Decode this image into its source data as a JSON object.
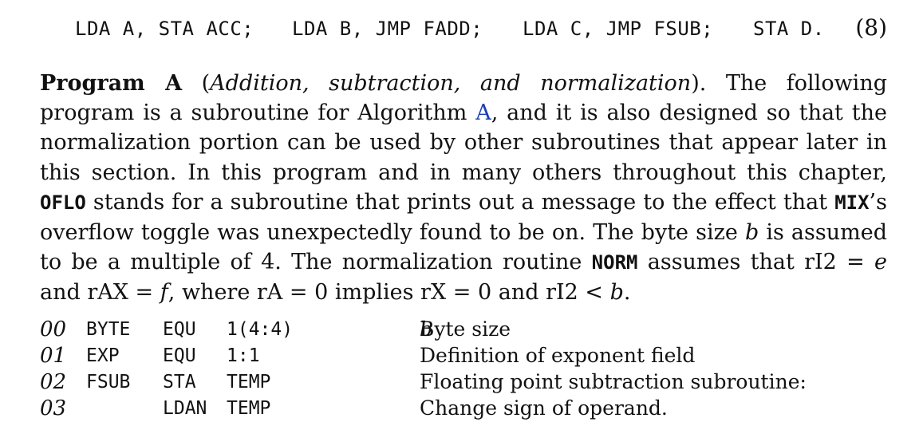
{
  "equation": {
    "segments": [
      "LDA A, STA ACC;",
      "LDA B, JMP FADD;",
      "LDA C, JMP FSUB;",
      "STA D."
    ],
    "number": "(8)"
  },
  "paragraph": {
    "heading": "Program A",
    "paren_open": "(",
    "heading_italic": "Addition, subtraction, and normalization",
    "paren_close": ").",
    "t1": " The following program is a subroutine for Algorithm ",
    "algo_link": "A",
    "t2": ", and it is also designed so that the normalization portion can be used by other subroutines that appear later in this section. In this program and in many others throughout this chapter, ",
    "code_oflo": "OFLO",
    "t3": " stands for a subroutine that prints out a message to the effect that ",
    "code_mix": "MIX",
    "t4": "’s overflow toggle was unexpectedly found to be on. The byte size ",
    "var_b1": "b",
    "t5": " is assumed to be a multiple of 4. The normalization routine ",
    "code_norm": "NORM",
    "t6": " assumes that rI2 = ",
    "var_e": "e",
    "t7": " and rAX = ",
    "var_f": "f",
    "t8": ", where rA = 0 implies rX = 0 and rI2 < ",
    "var_b2": "b",
    "t9": "."
  },
  "listing": [
    {
      "line": "00",
      "loc": "BYTE",
      "op": "EQU",
      "addr": "1(4:4)",
      "comment": "Byte size ",
      "comment_var": "b"
    },
    {
      "line": "01",
      "loc": "EXP",
      "op": "EQU",
      "addr": "1:1",
      "comment": "Definition of exponent field",
      "comment_var": ""
    },
    {
      "line": "02",
      "loc": "FSUB",
      "op": "STA",
      "addr": "TEMP",
      "comment": "Floating point subtraction subroutine:",
      "comment_var": ""
    },
    {
      "line": "03",
      "loc": "",
      "op": "LDAN",
      "addr": "TEMP",
      "comment": "Change sign of operand.",
      "comment_var": ""
    }
  ]
}
